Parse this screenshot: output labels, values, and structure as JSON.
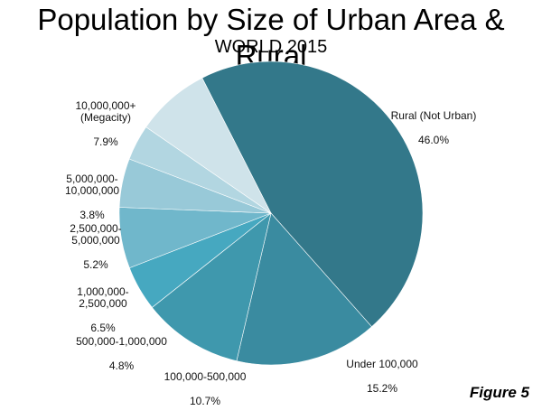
{
  "chart_data": {
    "type": "pie",
    "title": "Population by Size of Urban Area & Rural",
    "subtitle": "WORLD 2015",
    "slices": [
      {
        "label": "Rural (Not Urban)",
        "value": 46.0,
        "value_label": "46.0%",
        "color": "#33788a"
      },
      {
        "label": "Under 100,000",
        "value": 15.2,
        "value_label": "15.2%",
        "color": "#3a8ba0"
      },
      {
        "label": "100,000-500,000",
        "value": 10.7,
        "value_label": "10.7%",
        "color": "#3f98ad"
      },
      {
        "label": "500,000-1,000,000",
        "value": 4.8,
        "value_label": "4.8%",
        "color": "#46a8c0"
      },
      {
        "label": "1,000,000-\n2,500,000",
        "value": 6.5,
        "value_label": "6.5%",
        "color": "#70b7cb"
      },
      {
        "label": "2,500,000-\n5,000,000",
        "value": 5.2,
        "value_label": "5.2%",
        "color": "#98c9d8"
      },
      {
        "label": "5,000,000-\n10,000,000",
        "value": 3.8,
        "value_label": "3.8%",
        "color": "#b2d6e1"
      },
      {
        "label": "10,000,000+\n(Megacity)",
        "value": 7.9,
        "value_label": "7.9%",
        "color": "#cfe3ea"
      }
    ],
    "start_angle_deg": -117,
    "direction": "clockwise",
    "legend": "none"
  },
  "figure_label": "Figure 5"
}
